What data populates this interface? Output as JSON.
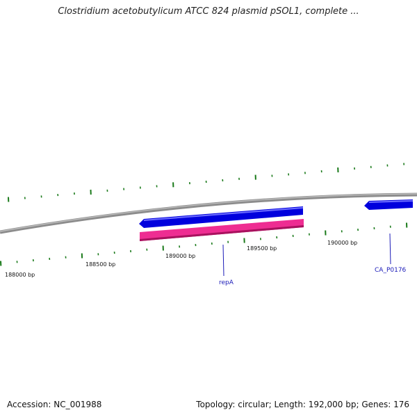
{
  "title": "Clostridium acetobutylicum ATCC 824 plasmid pSOL1, complete ...",
  "footer": {
    "accession": "Accession: NC_001988",
    "summary": "Topology: circular; Length: 192,000 bp; Genes: 176"
  },
  "colors": {
    "backbone": "#8c8c8c",
    "cds_forward": "#0000dd",
    "cds_reverse": "#0000dd",
    "gene_pink": "#ee2d92",
    "tick": "#1a7a1a",
    "label": "#1a1ab8"
  },
  "scale": {
    "labels": [
      "188000 bp",
      "188500 bp",
      "189000 bp",
      "189500 bp",
      "190000 bp"
    ]
  },
  "features": [
    {
      "name": "repA",
      "type": "CDS",
      "strand": "reverse"
    },
    {
      "name": "repA",
      "type": "gene",
      "strand": "reverse"
    },
    {
      "name": "CA_P0176",
      "type": "CDS",
      "strand": "reverse"
    }
  ],
  "gene_labels": [
    "repA",
    "CA_P0176"
  ]
}
